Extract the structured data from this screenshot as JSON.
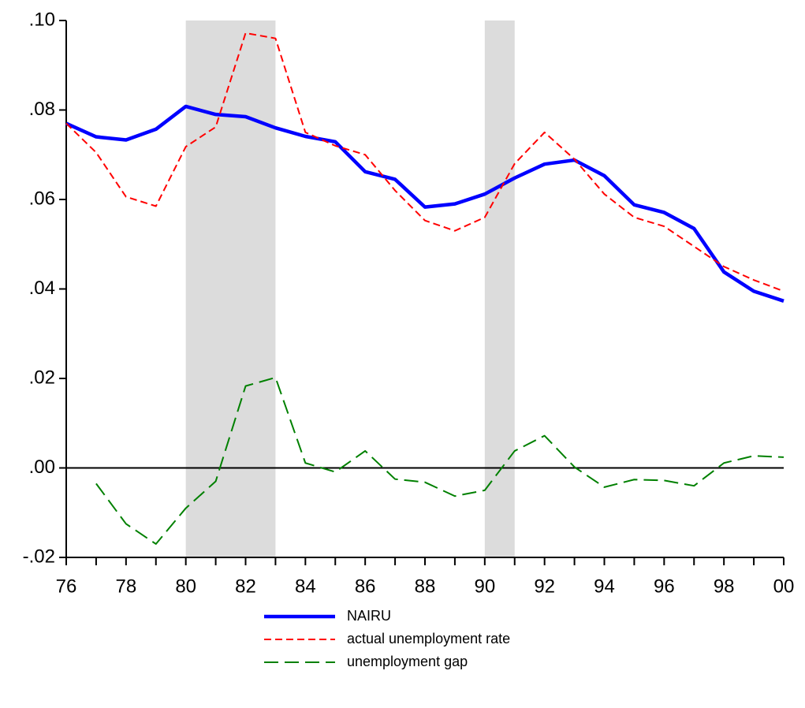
{
  "chart_data": {
    "type": "line",
    "x": [
      1976,
      1977,
      1978,
      1979,
      1980,
      1981,
      1982,
      1983,
      1984,
      1985,
      1986,
      1987,
      1988,
      1989,
      1990,
      1991,
      1992,
      1993,
      1994,
      1995,
      1996,
      1997,
      1998,
      1999,
      2000
    ],
    "series": [
      {
        "name": "NAIRU",
        "color": "#0000ff",
        "style": "solid",
        "values": [
          0.077,
          0.074,
          0.0733,
          0.0757,
          0.0808,
          0.079,
          0.0785,
          0.076,
          0.0741,
          0.0729,
          0.0662,
          0.0645,
          0.0583,
          0.059,
          0.0612,
          0.0648,
          0.0679,
          0.0688,
          0.0653,
          0.0588,
          0.0571,
          0.0535,
          0.0438,
          0.0395,
          0.0373
        ]
      },
      {
        "name": "actual unemployment rate",
        "color": "#ff0000",
        "style": "dashed",
        "values": [
          0.077,
          0.0705,
          0.0606,
          0.0585,
          0.0718,
          0.0762,
          0.0972,
          0.096,
          0.075,
          0.072,
          0.07,
          0.062,
          0.0553,
          0.053,
          0.056,
          0.068,
          0.075,
          0.069,
          0.0612,
          0.056,
          0.054,
          0.0495,
          0.045,
          0.042,
          0.0395
        ]
      },
      {
        "name": "unemployment gap",
        "color": "#008000",
        "style": "longdash",
        "values": [
          null,
          -0.0035,
          -0.0125,
          -0.017,
          -0.009,
          -0.003,
          0.0183,
          0.0202,
          0.0011,
          -0.0009,
          0.0038,
          -0.0025,
          -0.0032,
          -0.0063,
          -0.005,
          0.0038,
          0.0072,
          0.0002,
          -0.0043,
          -0.0026,
          -0.0028,
          -0.004,
          0.0011,
          0.0027,
          0.0024
        ]
      }
    ],
    "xlim": [
      1976,
      2000
    ],
    "xticks": [
      {
        "value": 1976,
        "label": "76"
      },
      {
        "value": 1978,
        "label": "78"
      },
      {
        "value": 1980,
        "label": "80"
      },
      {
        "value": 1982,
        "label": "82"
      },
      {
        "value": 1984,
        "label": "84"
      },
      {
        "value": 1986,
        "label": "86"
      },
      {
        "value": 1988,
        "label": "88"
      },
      {
        "value": 1990,
        "label": "90"
      },
      {
        "value": 1992,
        "label": "92"
      },
      {
        "value": 1994,
        "label": "94"
      },
      {
        "value": 1996,
        "label": "96"
      },
      {
        "value": 1998,
        "label": "98"
      },
      {
        "value": 2000,
        "label": "00"
      }
    ],
    "xminorticks": [
      1977,
      1979,
      1981,
      1983,
      1985,
      1987,
      1989,
      1991,
      1993,
      1995,
      1997,
      1999
    ],
    "ylim": [
      -0.02,
      0.1
    ],
    "yticks": [
      {
        "value": -0.02,
        "label": "-.02"
      },
      {
        "value": 0,
        "label": ".00"
      },
      {
        "value": 0.02,
        "label": ".02"
      },
      {
        "value": 0.04,
        "label": ".04"
      },
      {
        "value": 0.06,
        "label": ".06"
      },
      {
        "value": 0.08,
        "label": ".08"
      },
      {
        "value": 0.1,
        "label": ".10"
      }
    ],
    "shaded_spans": [
      [
        1980,
        1983
      ],
      [
        1990,
        1991
      ]
    ],
    "reference_line": 0,
    "legend": "bottom"
  }
}
